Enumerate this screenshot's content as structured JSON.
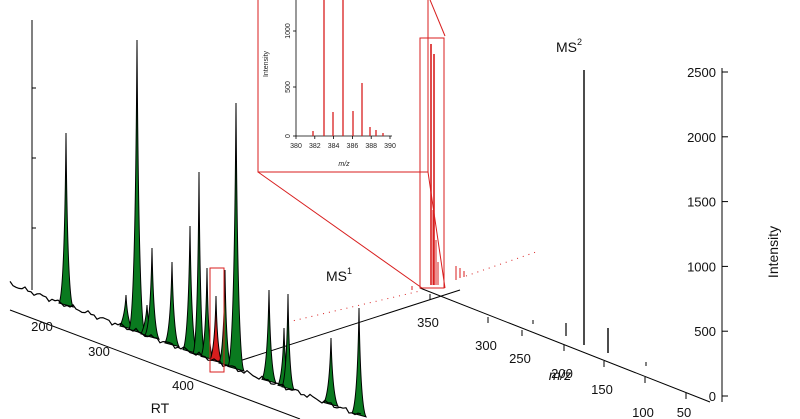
{
  "labels": {
    "rt": "RT",
    "ms1": "MS",
    "ms1_sup": "1",
    "ms2": "MS",
    "ms2_sup": "2",
    "mz": "m/z",
    "intensity": "Intensity",
    "inset_y": "Intensity",
    "inset_x": "m/z"
  },
  "rt_ticks": [
    "200",
    "300",
    "400"
  ],
  "mz_ticks": [
    "350",
    "300",
    "250",
    "200",
    "150",
    "100",
    "50"
  ],
  "intensity_ticks": [
    "0",
    "500",
    "1000",
    "1500",
    "2000",
    "2500"
  ],
  "inset_x_ticks": [
    "380",
    "382",
    "384",
    "386",
    "388",
    "390"
  ],
  "inset_y_ticks": [
    "0",
    "500",
    "1000"
  ],
  "colors": {
    "peak_fill": "#0a7a1f",
    "highlight": "#d81e1e",
    "axis": "#000000"
  }
}
